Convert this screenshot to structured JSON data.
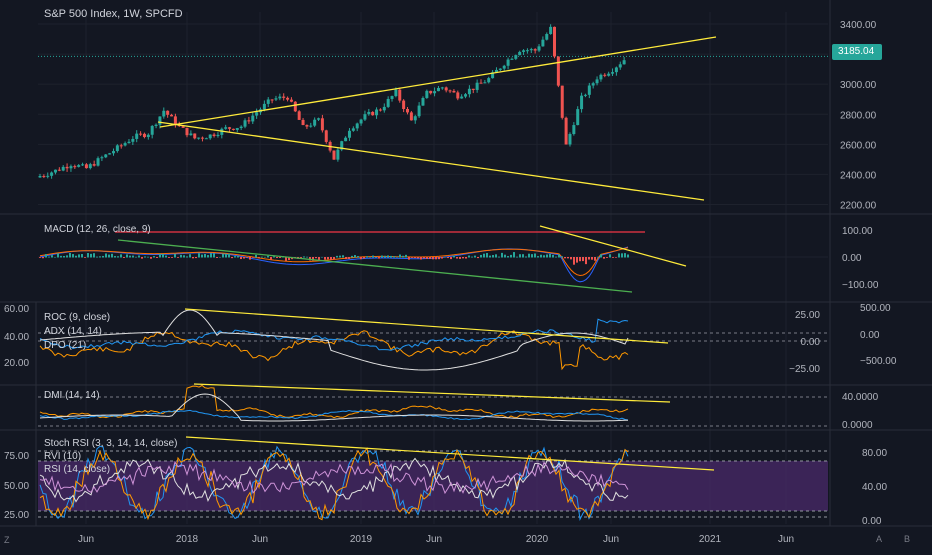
{
  "title": "S&P 500 Index, 1W, SPCFD",
  "last_price": "3185.04",
  "colors": {
    "up": "#26a69a",
    "down": "#ef5350",
    "trend": "#ffeb3b",
    "green": "#4caf50",
    "red": "#f23645",
    "bg": "#131722",
    "rsi_fill": "#4a2a6a"
  },
  "x_axis": {
    "ticks": [
      "Jun",
      "2018",
      "Jun",
      "2019",
      "Jun",
      "2020",
      "Jun",
      "2021",
      "Jun"
    ]
  },
  "corner": {
    "left": "Z",
    "right_a": "A",
    "right_b": "B"
  },
  "panes": {
    "price": {
      "ticks": [
        "3400.00",
        "3200.00",
        "3000.00",
        "2800.00",
        "2600.00",
        "2400.00",
        "2200.00"
      ]
    },
    "macd": {
      "label": "MACD (12, 26, close, 9)",
      "ticks": [
        "100.00",
        "0.00",
        "−100.00"
      ]
    },
    "roc": {
      "labels": [
        "ROC (9, close)",
        "ADX (14, 14)",
        "DPO (21)"
      ],
      "left_ticks": [
        "60.00",
        "40.00",
        "20.00"
      ],
      "right_ticks_a": [
        "25.00",
        "0.00",
        "−25.00"
      ],
      "right_ticks_b": [
        "500.00",
        "0.00",
        "−500.00"
      ]
    },
    "dmi": {
      "label": "DMI (14, 14)",
      "ticks": [
        "40.0000",
        "0.0000"
      ]
    },
    "stoch": {
      "labels": [
        "Stoch RSI (3, 3, 14, 14, close)",
        "RVI (10)",
        "RSI (14, close)"
      ],
      "left_ticks": [
        "75.00",
        "50.00",
        "25.00"
      ],
      "right_ticks": [
        "80.00",
        "40.00",
        "0.00"
      ]
    }
  },
  "chart_data": {
    "type": "candlestick",
    "title": "S&P 500 Index, 1W, SPCFD",
    "x": [
      "2017-05",
      "2017-06",
      "2017-07",
      "2017-08",
      "2017-09",
      "2017-10",
      "2017-11",
      "2017-12",
      "2018-01",
      "2018-02",
      "2018-03",
      "2018-04",
      "2018-05",
      "2018-06",
      "2018-07",
      "2018-08",
      "2018-09",
      "2018-10",
      "2018-11",
      "2018-12",
      "2019-01",
      "2019-02",
      "2019-03",
      "2019-04",
      "2019-05",
      "2019-06",
      "2019-07",
      "2019-08",
      "2019-09",
      "2019-10",
      "2019-11",
      "2019-12",
      "2020-01",
      "2020-02",
      "2020-03",
      "2020-04",
      "2020-05",
      "2020-06",
      "2020-07"
    ],
    "close": [
      2390,
      2425,
      2470,
      2440,
      2510,
      2575,
      2645,
      2675,
      2825,
      2715,
      2640,
      2660,
      2705,
      2720,
      2815,
      2900,
      2915,
      2710,
      2760,
      2505,
      2705,
      2785,
      2835,
      2945,
      2755,
      2940,
      2980,
      2925,
      2975,
      3035,
      3140,
      3230,
      3225,
      3370,
      2590,
      2905,
      3045,
      3100,
      3185
    ],
    "ylim": [
      2150,
      3480
    ],
    "y_ticks": [
      2200,
      2400,
      2600,
      2800,
      3000,
      3200,
      3400
    ],
    "last_price": 3185.04
  }
}
